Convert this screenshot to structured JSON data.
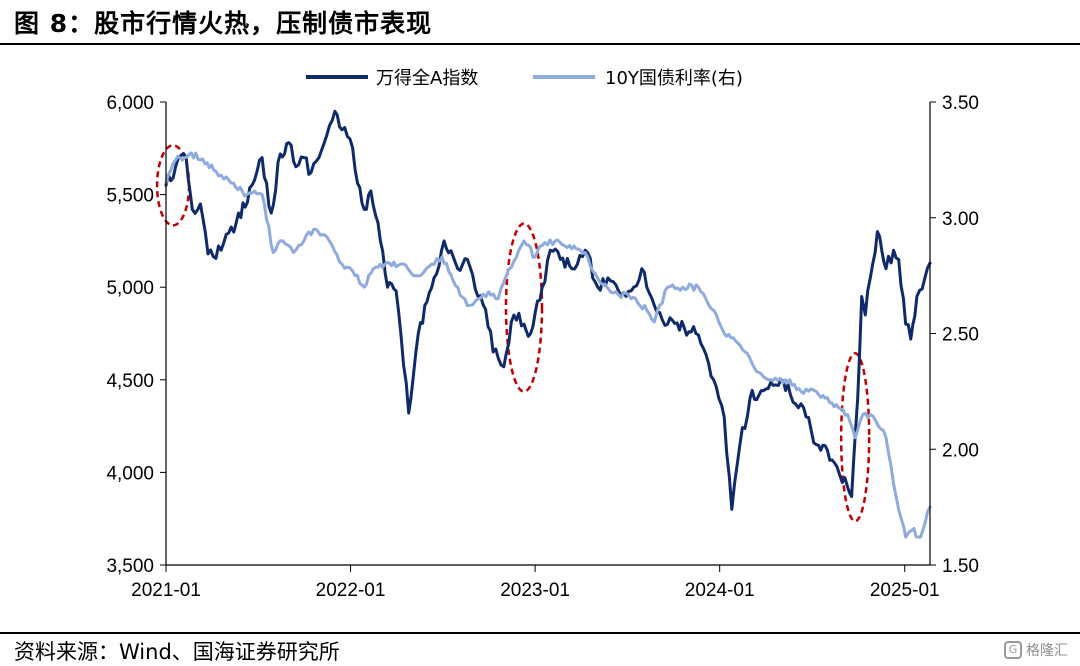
{
  "header": {
    "title": "图 8：股市行情火热，压制债市表现"
  },
  "footer": {
    "source": "资料来源：Wind、国海证券研究所",
    "watermark": "格隆汇"
  },
  "chart_data": {
    "type": "line",
    "title": "图 8：股市行情火热，压制债市表现",
    "x_ticks": [
      "2021-01",
      "2022-01",
      "2023-01",
      "2024-01",
      "2025-01"
    ],
    "x_range": [
      "2021-01-01",
      "2025-02-20"
    ],
    "y_left": {
      "ticks": [
        "6,000",
        "5,500",
        "5,000",
        "4,500",
        "4,000",
        "3,500"
      ],
      "range": [
        3500,
        6000
      ]
    },
    "y_right": {
      "ticks": [
        "3.50",
        "3.00",
        "2.50",
        "2.00",
        "1.50"
      ],
      "range": [
        1.5,
        3.5
      ]
    },
    "legend_position": "top-center",
    "series": [
      {
        "name": "万得全A指数",
        "axis": "left",
        "color": "#0f2a6b",
        "x": [
          "2021-01-01",
          "2021-01-20",
          "2021-02-10",
          "2021-02-22",
          "2021-03-10",
          "2021-03-25",
          "2021-04-20",
          "2021-05-20",
          "2021-06-20",
          "2021-07-10",
          "2021-07-28",
          "2021-08-15",
          "2021-09-01",
          "2021-09-15",
          "2021-10-01",
          "2021-10-15",
          "2021-11-10",
          "2021-12-01",
          "2021-12-15",
          "2021-12-31",
          "2022-01-15",
          "2022-01-28",
          "2022-02-10",
          "2022-03-01",
          "2022-03-15",
          "2022-04-01",
          "2022-04-26",
          "2022-05-15",
          "2022-06-01",
          "2022-06-15",
          "2022-07-05",
          "2022-08-01",
          "2022-08-20",
          "2022-09-10",
          "2022-09-25",
          "2022-10-10",
          "2022-10-31",
          "2022-11-20",
          "2022-12-10",
          "2022-12-23",
          "2023-01-15",
          "2023-01-31",
          "2023-02-20",
          "2023-03-15",
          "2023-04-10",
          "2023-05-05",
          "2023-05-25",
          "2023-06-15",
          "2023-07-10",
          "2023-07-31",
          "2023-08-25",
          "2023-09-20",
          "2023-10-23",
          "2023-11-15",
          "2023-12-20",
          "2024-01-10",
          "2024-01-25",
          "2024-02-05",
          "2024-02-10",
          "2024-03-01",
          "2024-04-01",
          "2024-05-01",
          "2024-05-20",
          "2024-06-15",
          "2024-07-10",
          "2024-08-01",
          "2024-08-20",
          "2024-09-10",
          "2024-09-18",
          "2024-09-30",
          "2024-10-08",
          "2024-10-15",
          "2024-10-25",
          "2024-11-08",
          "2024-11-25",
          "2024-12-10",
          "2024-12-20",
          "2025-01-03",
          "2025-01-13",
          "2025-01-25",
          "2025-02-10",
          "2025-02-20"
        ],
        "values": [
          5550,
          5650,
          5700,
          5420,
          5450,
          5180,
          5200,
          5350,
          5550,
          5700,
          5400,
          5720,
          5780,
          5650,
          5700,
          5620,
          5780,
          5950,
          5850,
          5800,
          5560,
          5420,
          5520,
          5250,
          5000,
          4980,
          4320,
          4750,
          4920,
          5050,
          5250,
          5100,
          5150,
          4950,
          4880,
          4650,
          4570,
          4850,
          4800,
          4750,
          5000,
          5200,
          5150,
          5100,
          5200,
          5000,
          5050,
          4980,
          4980,
          5100,
          4900,
          4800,
          4780,
          4750,
          4500,
          4300,
          3800,
          4050,
          4150,
          4400,
          4450,
          4500,
          4420,
          4350,
          4150,
          4120,
          4030,
          3920,
          3870,
          4400,
          4950,
          4850,
          5050,
          5300,
          5100,
          5200,
          5150,
          4800,
          4720,
          4950,
          5050,
          5130
        ]
      },
      {
        "name": "10Y国债利率(右)",
        "axis": "right",
        "color": "#8faadc",
        "x": [
          "2021-01-01",
          "2021-01-20",
          "2021-02-20",
          "2021-03-10",
          "2021-04-10",
          "2021-05-10",
          "2021-06-10",
          "2021-07-10",
          "2021-08-01",
          "2021-08-20",
          "2021-09-10",
          "2021-10-01",
          "2021-10-20",
          "2021-11-20",
          "2021-12-15",
          "2022-01-10",
          "2022-01-28",
          "2022-02-15",
          "2022-03-10",
          "2022-04-10",
          "2022-05-10",
          "2022-06-10",
          "2022-07-01",
          "2022-08-01",
          "2022-08-20",
          "2022-09-10",
          "2022-10-01",
          "2022-10-20",
          "2022-11-05",
          "2022-11-25",
          "2022-12-10",
          "2023-01-01",
          "2023-01-15",
          "2023-02-10",
          "2023-03-10",
          "2023-04-10",
          "2023-05-10",
          "2023-06-10",
          "2023-07-10",
          "2023-08-10",
          "2023-08-25",
          "2023-09-20",
          "2023-10-20",
          "2023-11-20",
          "2023-12-20",
          "2024-01-10",
          "2024-02-10",
          "2024-03-10",
          "2024-04-10",
          "2024-05-10",
          "2024-06-10",
          "2024-07-10",
          "2024-08-10",
          "2024-09-10",
          "2024-09-25",
          "2024-10-10",
          "2024-10-25",
          "2024-11-10",
          "2024-11-25",
          "2024-12-10",
          "2024-12-25",
          "2025-01-03",
          "2025-01-15",
          "2025-02-01",
          "2025-02-20"
        ],
        "values": [
          3.15,
          3.25,
          3.28,
          3.25,
          3.2,
          3.15,
          3.1,
          3.1,
          2.85,
          2.9,
          2.85,
          2.9,
          2.95,
          2.9,
          2.8,
          2.75,
          2.7,
          2.78,
          2.8,
          2.8,
          2.75,
          2.8,
          2.83,
          2.7,
          2.62,
          2.65,
          2.68,
          2.65,
          2.75,
          2.83,
          2.9,
          2.83,
          2.88,
          2.9,
          2.88,
          2.85,
          2.72,
          2.68,
          2.65,
          2.6,
          2.55,
          2.7,
          2.7,
          2.7,
          2.6,
          2.5,
          2.45,
          2.35,
          2.3,
          2.3,
          2.25,
          2.25,
          2.2,
          2.15,
          2.05,
          2.15,
          2.15,
          2.1,
          2.05,
          1.85,
          1.7,
          1.62,
          1.65,
          1.62,
          1.75
        ]
      }
    ],
    "annotations": [
      {
        "type": "dashed-ellipse",
        "color": "#c00000",
        "x_center": "2021-01-15",
        "y_left_center": 5550
      },
      {
        "type": "dashed-ellipse",
        "color": "#c00000",
        "x_center": "2022-12-10",
        "y_left_center": 4890
      },
      {
        "type": "dashed-ellipse",
        "color": "#c00000",
        "x_center": "2024-09-25",
        "y_left_center": 4190
      }
    ]
  }
}
